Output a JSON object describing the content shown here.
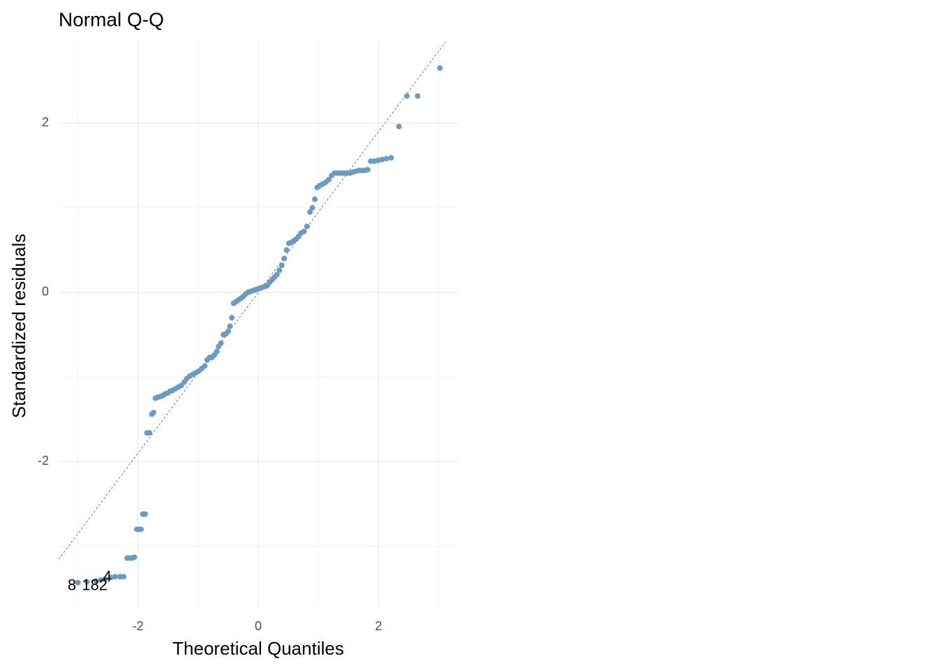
{
  "chart_data": {
    "type": "scatter",
    "title": "Normal Q-Q",
    "x_label": "Theoretical Quantiles",
    "y_label": "Standardized residuals",
    "color": "#6a9bc3",
    "grid": true,
    "xlim": [
      -3.32,
      3.33
    ],
    "ylim": [
      -3.72,
      2.96
    ],
    "xticks": [
      -2,
      0,
      2
    ],
    "yticks": [
      -2,
      0,
      2
    ],
    "x_minor_grid": [
      -3,
      -1,
      1,
      3
    ],
    "y_minor_grid": [
      -3,
      -1,
      1
    ],
    "reference_line": {
      "intercept": 0,
      "slope": 0.95
    },
    "annotations": [
      {
        "text": "8",
        "x": -3.1,
        "y": -3.47
      },
      {
        "text": "182",
        "x": -2.72,
        "y": -3.47
      },
      {
        "text": "4",
        "x": -2.51,
        "y": -3.37
      }
    ],
    "x": [
      -3.0,
      -2.85,
      -2.7,
      -2.62,
      -2.55,
      -2.45,
      -2.38,
      -2.3,
      -2.24,
      -2.18,
      -2.14,
      -2.1,
      -2.06,
      -2.02,
      -1.98,
      -1.95,
      -1.92,
      -1.88,
      -1.85,
      -1.81,
      -1.77,
      -1.74,
      -1.71,
      -1.67,
      -1.63,
      -1.59,
      -1.55,
      -1.51,
      -1.47,
      -1.43,
      -1.38,
      -1.33,
      -1.28,
      -1.23,
      -1.19,
      -1.14,
      -1.09,
      -1.04,
      -0.99,
      -0.94,
      -0.89,
      -0.85,
      -0.81,
      -0.77,
      -0.73,
      -0.69,
      -0.66,
      -0.62,
      -0.58,
      -0.54,
      -0.5,
      -0.47,
      -0.44,
      -0.41,
      -0.37,
      -0.33,
      -0.29,
      -0.25,
      -0.21,
      -0.17,
      -0.13,
      -0.09,
      -0.05,
      -0.01,
      0.03,
      0.07,
      0.11,
      0.15,
      0.19,
      0.23,
      0.27,
      0.31,
      0.35,
      0.39,
      0.43,
      0.47,
      0.51,
      0.55,
      0.59,
      0.63,
      0.67,
      0.71,
      0.76,
      0.81,
      0.86,
      0.9,
      0.94,
      0.98,
      1.02,
      1.07,
      1.12,
      1.17,
      1.22,
      1.27,
      1.32,
      1.37,
      1.42,
      1.47,
      1.52,
      1.57,
      1.62,
      1.67,
      1.72,
      1.77,
      1.82,
      1.87,
      1.93,
      1.99,
      2.06,
      2.13,
      2.21,
      2.34,
      2.47,
      2.65,
      3.02
    ],
    "values": [
      -3.43,
      -3.42,
      -3.41,
      -3.4,
      -3.39,
      -3.37,
      -3.36,
      -3.36,
      -3.36,
      -3.14,
      -3.14,
      -3.14,
      -3.13,
      -2.8,
      -2.8,
      -2.8,
      -2.62,
      -2.62,
      -1.66,
      -1.66,
      -1.44,
      -1.42,
      -1.25,
      -1.24,
      -1.23,
      -1.22,
      -1.2,
      -1.19,
      -1.17,
      -1.16,
      -1.14,
      -1.12,
      -1.1,
      -1.06,
      -1.02,
      -0.99,
      -0.97,
      -0.95,
      -0.93,
      -0.9,
      -0.87,
      -0.8,
      -0.77,
      -0.77,
      -0.74,
      -0.7,
      -0.64,
      -0.6,
      -0.5,
      -0.49,
      -0.46,
      -0.4,
      -0.3,
      -0.13,
      -0.11,
      -0.09,
      -0.07,
      -0.05,
      -0.02,
      0.0,
      0.01,
      0.02,
      0.03,
      0.04,
      0.05,
      0.06,
      0.07,
      0.08,
      0.12,
      0.15,
      0.18,
      0.21,
      0.26,
      0.32,
      0.4,
      0.5,
      0.58,
      0.59,
      0.61,
      0.63,
      0.66,
      0.7,
      0.72,
      0.78,
      0.95,
      1.0,
      1.1,
      1.24,
      1.26,
      1.28,
      1.3,
      1.33,
      1.38,
      1.41,
      1.41,
      1.41,
      1.41,
      1.41,
      1.41,
      1.42,
      1.43,
      1.44,
      1.44,
      1.44,
      1.45,
      1.55,
      1.55,
      1.56,
      1.57,
      1.58,
      1.59,
      1.96,
      2.32,
      2.32,
      2.65
    ]
  }
}
